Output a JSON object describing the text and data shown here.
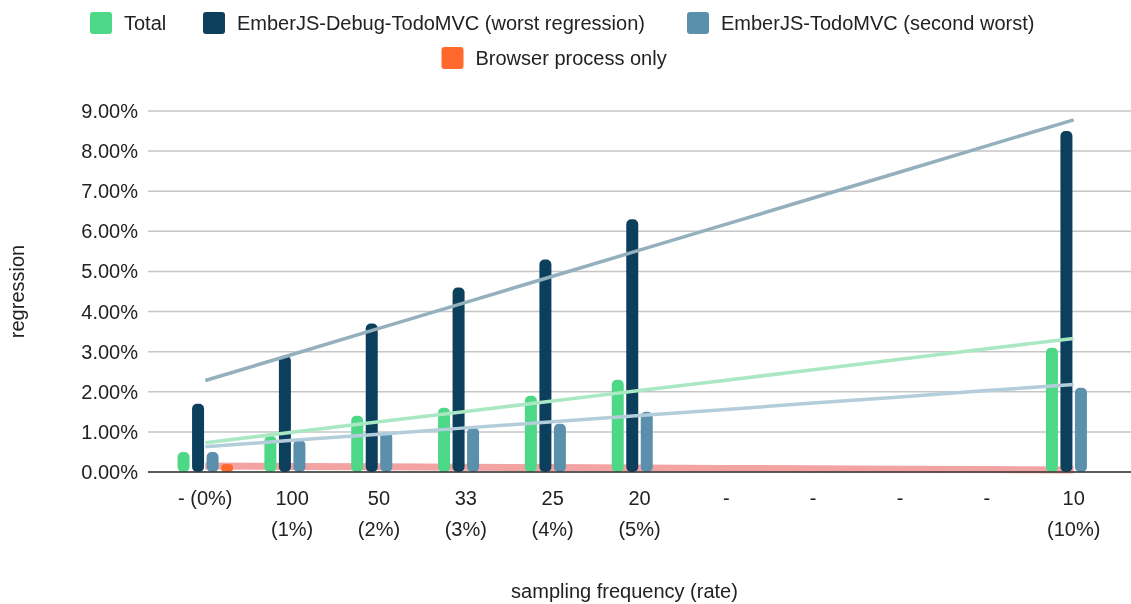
{
  "chart_data": {
    "type": "bar",
    "xlabel": "sampling frequency (rate)",
    "ylabel": "regression",
    "categories": [
      "- (0%)",
      "100\n(1%)",
      "50\n(2%)",
      "33\n(3%)",
      "25\n(4%)",
      "20\n(5%)",
      "-",
      "-",
      "-",
      "-",
      "10\n(10%)"
    ],
    "series": [
      {
        "name": "Total",
        "color": "#4cd886",
        "values": [
          0.5,
          0.9,
          1.4,
          1.6,
          1.9,
          2.3,
          null,
          null,
          null,
          null,
          3.1
        ]
      },
      {
        "name": "EmberJS-Debug-TodoMVC (worst regression)",
        "color": "#0b3f5c",
        "values": [
          1.7,
          2.9,
          3.7,
          4.6,
          5.3,
          6.3,
          null,
          null,
          null,
          null,
          8.5
        ]
      },
      {
        "name": "EmberJS-TodoMVC (second worst)",
        "color": "#5a90ac",
        "values": [
          0.5,
          0.8,
          1.0,
          1.1,
          1.2,
          1.5,
          null,
          null,
          null,
          null,
          2.1
        ]
      },
      {
        "name": "Browser process only",
        "color": "#ff6a2c",
        "values": [
          0.2,
          null,
          null,
          null,
          null,
          null,
          null,
          null,
          null,
          null,
          null
        ]
      },
      {
        "type": "line",
        "color": "#f4a3a3",
        "values": [
          0.15,
          0.14,
          0.13,
          0.12,
          0.11,
          0.1,
          0.09,
          0.08,
          0.07,
          0.06,
          0.05
        ]
      },
      {
        "type": "line",
        "color": "#a9e8c2",
        "values": [
          0.73,
          0.99,
          1.25,
          1.51,
          1.77,
          2.03,
          2.29,
          2.55,
          2.81,
          3.07,
          3.33
        ]
      },
      {
        "type": "line",
        "color": "#b4cdda",
        "values": [
          0.63,
          0.79,
          0.94,
          1.1,
          1.25,
          1.41,
          1.56,
          1.72,
          1.87,
          2.03,
          2.18
        ]
      },
      {
        "type": "line",
        "color": "#93b0bc",
        "values": [
          2.28,
          2.93,
          3.58,
          4.23,
          4.88,
          5.53,
          6.18,
          6.83,
          7.48,
          8.13,
          8.78
        ]
      }
    ],
    "ylim": [
      0,
      9
    ],
    "yticks": [
      {
        "value": 0,
        "label": "0.00%"
      },
      {
        "value": 1,
        "label": "1.00%"
      },
      {
        "value": 2,
        "label": "2.00%"
      },
      {
        "value": 3,
        "label": "3.00%"
      },
      {
        "value": 4,
        "label": "4.00%"
      },
      {
        "value": 5,
        "label": "5.00%"
      },
      {
        "value": 6,
        "label": "6.00%"
      },
      {
        "value": 7,
        "label": "7.00%"
      },
      {
        "value": 8,
        "label": "8.00%"
      },
      {
        "value": 9,
        "label": "9.00%"
      }
    ],
    "grid": "y",
    "legend": "top"
  }
}
